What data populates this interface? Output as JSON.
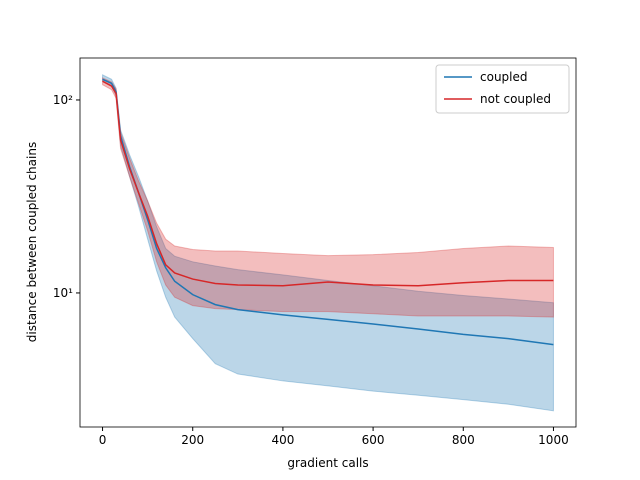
{
  "chart_data": {
    "type": "line",
    "xlabel": "gradient calls",
    "ylabel": "distance between coupled chains",
    "x": [
      0,
      20,
      30,
      40,
      60,
      80,
      100,
      120,
      140,
      160,
      200,
      250,
      300,
      400,
      500,
      600,
      700,
      800,
      900,
      1000
    ],
    "series": [
      {
        "name": "coupled",
        "color": "#1f77b4",
        "values": [
          128,
          122,
          110,
          65,
          45,
          33,
          24,
          17,
          13.5,
          11.5,
          9.8,
          8.7,
          8.2,
          7.7,
          7.3,
          6.9,
          6.5,
          6.1,
          5.8,
          5.4
        ],
        "lower": [
          125,
          118,
          105,
          58,
          40,
          28,
          19,
          13,
          9.5,
          7.5,
          5.8,
          4.3,
          3.8,
          3.5,
          3.3,
          3.1,
          2.95,
          2.8,
          2.65,
          2.45
        ],
        "upper": [
          135,
          128,
          115,
          70,
          52,
          40,
          30,
          22,
          17,
          15.5,
          14.5,
          13.8,
          13.2,
          12.4,
          11.6,
          10.9,
          10.2,
          9.7,
          9.3,
          8.9
        ]
      },
      {
        "name": "not coupled",
        "color": "#d62728",
        "values": [
          125,
          118,
          108,
          62,
          44,
          33,
          25,
          18,
          14,
          12.7,
          11.8,
          11.2,
          11,
          10.9,
          11.4,
          11,
          10.9,
          11.3,
          11.6,
          11.6
        ],
        "lower": [
          120,
          113,
          102,
          56,
          40,
          29,
          21,
          14.5,
          11,
          9.5,
          8.6,
          8.3,
          8.2,
          8,
          8,
          7.8,
          7.6,
          7.6,
          7.6,
          7.5
        ],
        "upper": [
          130,
          124,
          114,
          68,
          50,
          38,
          30,
          23,
          19,
          17.5,
          16.8,
          16.5,
          16.5,
          16,
          15.6,
          15.8,
          16.2,
          17,
          17.5,
          17.2
        ]
      }
    ],
    "xlim": [
      -50,
      1050
    ],
    "xticks": [
      0,
      200,
      400,
      600,
      800,
      1000
    ],
    "ylim": [
      2.02,
      165
    ],
    "yticks": [
      {
        "value": 10,
        "label": "10¹"
      },
      {
        "value": 100,
        "label": "10²"
      }
    ],
    "yscale": "log",
    "legend": "upper right"
  }
}
